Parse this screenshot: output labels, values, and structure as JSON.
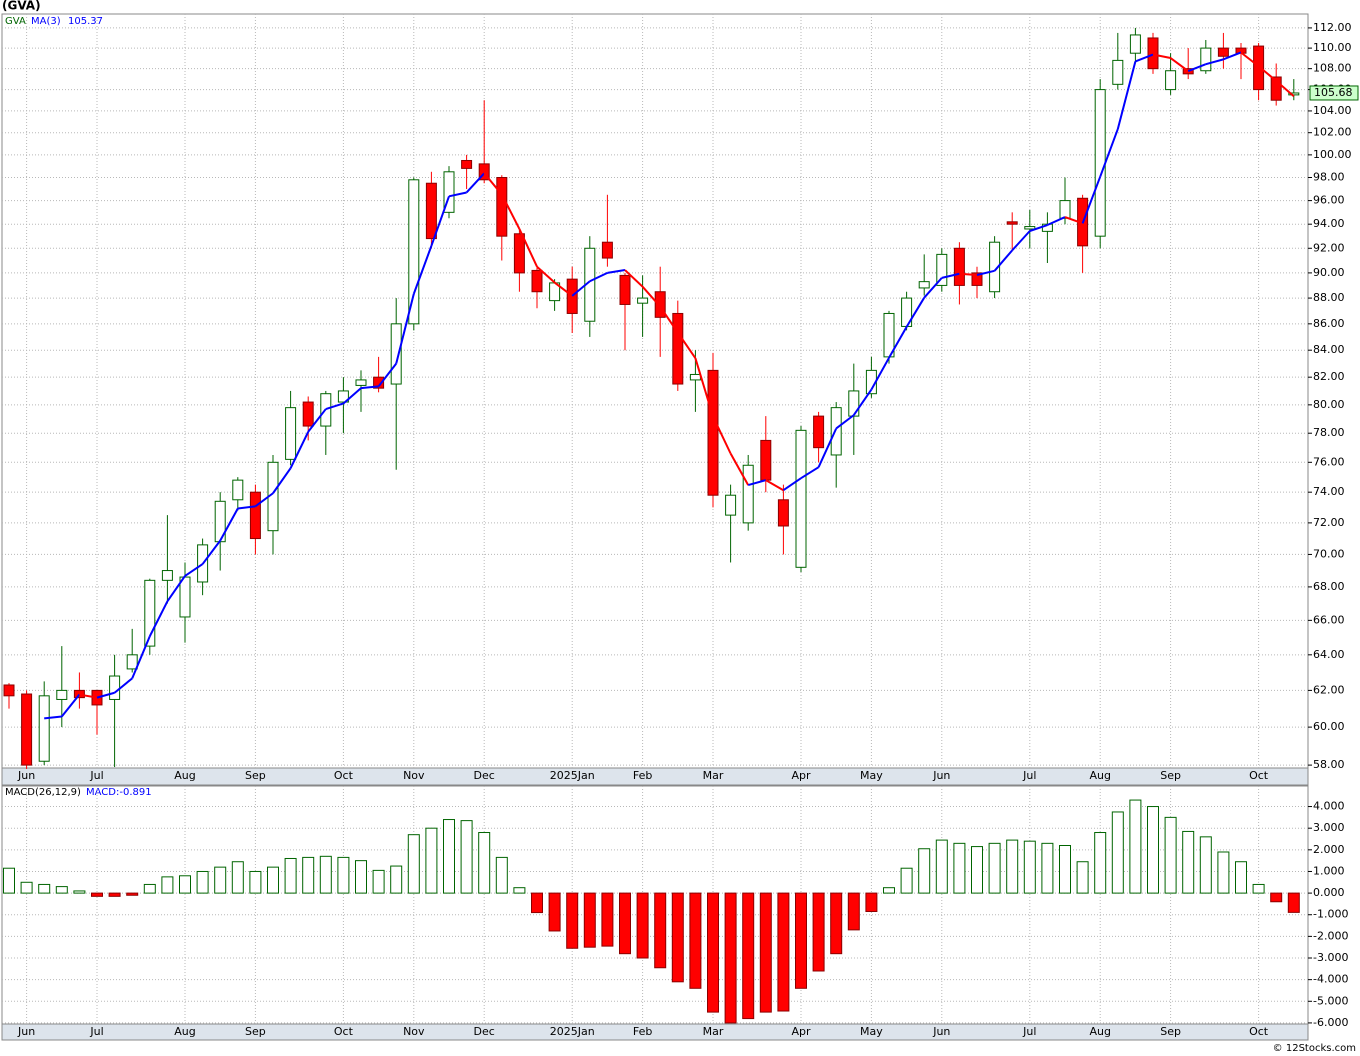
{
  "chart_data": [
    {
      "type": "candlestick",
      "title": "(GVA)",
      "ticker": "GVA",
      "categories": [
        null,
        "Jun",
        null,
        null,
        null,
        "Jul",
        null,
        null,
        null,
        null,
        "Aug",
        null,
        null,
        null,
        "Sep",
        null,
        null,
        null,
        null,
        "Oct",
        null,
        null,
        null,
        "Nov",
        null,
        null,
        null,
        "Dec",
        null,
        null,
        null,
        null,
        "2025Jan",
        null,
        null,
        null,
        "Feb",
        null,
        null,
        null,
        "Mar",
        null,
        null,
        null,
        null,
        "Apr",
        null,
        null,
        null,
        "May",
        null,
        null,
        null,
        "Jun",
        null,
        null,
        null,
        null,
        "Jul",
        null,
        null,
        null,
        "Aug",
        null,
        null,
        null,
        "Sep",
        null,
        null,
        null,
        null,
        "Oct",
        null,
        null
      ],
      "open": [
        62.3,
        61.8,
        58.2,
        61.5,
        62,
        62,
        61.5,
        63.2,
        64.5,
        68.4,
        66.2,
        68.3,
        70.8,
        73.5,
        74,
        71.5,
        76.2,
        80.2,
        78.5,
        80.2,
        81.4,
        82,
        81.5,
        86,
        97.5,
        95,
        99.5,
        99.2,
        98,
        93.2,
        90.2,
        87.8,
        89.5,
        86.2,
        92.5,
        89.8,
        87.6,
        88.5,
        86.8,
        81.8,
        82.5,
        72.5,
        72,
        77.5,
        73.5,
        69.2,
        79.2,
        76.5,
        79.2,
        80.8,
        83.5,
        85.8,
        88.8,
        89,
        92,
        90,
        88.5,
        94.2,
        93.6,
        93.4,
        94.5,
        96.2,
        93,
        106.5,
        109.5,
        111,
        106,
        108,
        107.8,
        110,
        110,
        110.2,
        107.2,
        105.5
      ],
      "high": [
        62.4,
        62,
        62.5,
        64.5,
        63,
        62,
        64,
        65.5,
        68.5,
        72.5,
        69.5,
        71,
        74,
        75,
        74.5,
        76.5,
        81,
        80.6,
        81,
        82,
        82.5,
        83.5,
        88,
        98,
        98.5,
        99,
        100,
        105,
        98.2,
        93.5,
        90.5,
        89.5,
        90.5,
        93,
        96.5,
        90,
        89.8,
        90.5,
        87.8,
        84,
        83.8,
        74.5,
        76.5,
        79.2,
        74.5,
        78.5,
        79.5,
        80.2,
        83,
        83.5,
        87,
        88.5,
        91.5,
        92,
        92.5,
        90.5,
        93,
        95,
        95.2,
        95,
        98,
        96.5,
        107,
        111.5,
        112,
        111.5,
        109.5,
        110,
        110.8,
        111.5,
        110.5,
        110.5,
        108.5,
        107
      ],
      "low": [
        61,
        57.8,
        58,
        60,
        61,
        59.6,
        57.9,
        63,
        64,
        67,
        64.7,
        67.5,
        69,
        72.8,
        70,
        70,
        75.8,
        77.5,
        76.5,
        78,
        79.5,
        80.9,
        75.5,
        85.5,
        92,
        94.5,
        97,
        97.5,
        91,
        88.5,
        87.2,
        87,
        85.3,
        85,
        90.5,
        84,
        85,
        83.5,
        81,
        79.5,
        73,
        69.5,
        71.5,
        74,
        70,
        68.9,
        76,
        74.3,
        76.5,
        80.5,
        83,
        85.5,
        88.2,
        88.5,
        87.5,
        88,
        88,
        91.8,
        92,
        90.8,
        94,
        90,
        92,
        106,
        108.5,
        107.5,
        105.5,
        107,
        107.5,
        108,
        107,
        105,
        104.5,
        105
      ],
      "close": [
        61.7,
        58,
        61.7,
        62,
        61.6,
        61.2,
        62.8,
        64,
        68.4,
        69,
        68.6,
        70.6,
        73.4,
        74.8,
        71,
        76,
        79.8,
        78.5,
        80.8,
        81,
        81.8,
        81.2,
        86,
        97.8,
        92.8,
        98.5,
        98.8,
        97.8,
        93,
        90,
        88.5,
        89.2,
        86.8,
        92,
        91.2,
        87.5,
        88,
        86.5,
        81.5,
        82.2,
        73.8,
        73.8,
        75.8,
        74.8,
        71.8,
        78.2,
        77,
        79.8,
        81,
        82.5,
        86.8,
        88,
        89.3,
        91.5,
        89,
        89,
        92.5,
        94,
        93.8,
        94,
        96,
        92.2,
        106,
        108.8,
        111.3,
        108,
        107.8,
        107.5,
        110,
        109.2,
        109.5,
        106,
        105,
        105.68
      ],
      "up_color": "#006400",
      "down_color": "#ff0000",
      "ma": {
        "name": "MA(3)",
        "up_color": "#0000ff",
        "down_color": "#ff0000",
        "values": [
          null,
          null,
          60.47,
          60.57,
          61.77,
          61.6,
          61.87,
          62.67,
          65.07,
          67.13,
          68.67,
          69.4,
          70.87,
          72.93,
          73.07,
          73.93,
          75.6,
          78.1,
          79.7,
          80.1,
          81.2,
          81.33,
          83,
          88.33,
          92.2,
          96.37,
          96.7,
          98.37,
          96.53,
          93.6,
          90.5,
          89.23,
          88.17,
          89.33,
          90,
          90.23,
          88.9,
          87.33,
          85.33,
          83.4,
          79.17,
          76.6,
          74.47,
          74.8,
          74.13,
          74.93,
          75.67,
          78.33,
          79.27,
          81.1,
          83.43,
          85.77,
          88.03,
          89.6,
          89.93,
          89.83,
          90.17,
          91.83,
          93.43,
          93.93,
          94.6,
          94.07,
          98.07,
          102.33,
          108.7,
          109.37,
          109.03,
          107.77,
          108.43,
          108.9,
          109.57,
          108.23,
          106.83,
          105.37
        ]
      },
      "ylim": [
        57.85,
        113.4
      ],
      "log_scale": true,
      "grid": true,
      "yticks": [
        {
          "value": 58,
          "label": "58.00"
        },
        {
          "value": 60,
          "label": "60.00"
        },
        {
          "value": 62,
          "label": "62.00"
        },
        {
          "value": 64,
          "label": "64.00"
        },
        {
          "value": 66,
          "label": "66.00"
        },
        {
          "value": 68,
          "label": "68.00"
        },
        {
          "value": 70,
          "label": "70.00"
        },
        {
          "value": 72,
          "label": "72.00"
        },
        {
          "value": 74,
          "label": "74.00"
        },
        {
          "value": 76,
          "label": "76.00"
        },
        {
          "value": 78,
          "label": "78.00"
        },
        {
          "value": 80,
          "label": "80.00"
        },
        {
          "value": 82,
          "label": "82.00"
        },
        {
          "value": 84,
          "label": "84.00"
        },
        {
          "value": 86,
          "label": "86.00"
        },
        {
          "value": 88,
          "label": "88.00"
        },
        {
          "value": 90,
          "label": "90.00"
        },
        {
          "value": 92,
          "label": "92.00"
        },
        {
          "value": 94,
          "label": "94.00"
        },
        {
          "value": 96,
          "label": "96.00"
        },
        {
          "value": 98,
          "label": "98.00"
        },
        {
          "value": 100,
          "label": "100.00"
        },
        {
          "value": 102,
          "label": "102.00"
        },
        {
          "value": 104,
          "label": "104.00"
        },
        {
          "value": 106,
          "label": "106.00"
        },
        {
          "value": 108,
          "label": "108.00"
        },
        {
          "value": 110,
          "label": "110.00"
        },
        {
          "value": 112,
          "label": "112.00"
        }
      ]
    },
    {
      "type": "bar",
      "name": "MACD(26,12,9)",
      "current_label": "MACD:",
      "categories": [
        null,
        "Jun",
        null,
        null,
        null,
        "Jul",
        null,
        null,
        null,
        null,
        "Aug",
        null,
        null,
        null,
        "Sep",
        null,
        null,
        null,
        null,
        "Oct",
        null,
        null,
        null,
        "Nov",
        null,
        null,
        null,
        "Dec",
        null,
        null,
        null,
        null,
        "2025Jan",
        null,
        null,
        null,
        "Feb",
        null,
        null,
        null,
        "Mar",
        null,
        null,
        null,
        null,
        "Apr",
        null,
        null,
        null,
        "May",
        null,
        null,
        null,
        "Jun",
        null,
        null,
        null,
        null,
        "Jul",
        null,
        null,
        null,
        "Aug",
        null,
        null,
        null,
        "Sep",
        null,
        null,
        null,
        null,
        "Oct",
        null,
        null
      ],
      "values": [
        1.15,
        0.5,
        0.4,
        0.3,
        0.1,
        -0.15,
        -0.15,
        -0.1,
        0.4,
        0.75,
        0.8,
        1.0,
        1.2,
        1.45,
        1.0,
        1.2,
        1.6,
        1.65,
        1.7,
        1.65,
        1.5,
        1.05,
        1.25,
        2.7,
        3.0,
        3.4,
        3.35,
        2.8,
        1.65,
        0.25,
        -0.9,
        -1.75,
        -2.55,
        -2.5,
        -2.45,
        -2.8,
        -3.0,
        -3.45,
        -4.1,
        -4.4,
        -5.5,
        -6.0,
        -5.8,
        -5.5,
        -5.45,
        -4.4,
        -3.6,
        -2.8,
        -1.7,
        -0.85,
        0.25,
        1.15,
        2.05,
        2.45,
        2.3,
        2.15,
        2.3,
        2.45,
        2.4,
        2.3,
        2.2,
        1.45,
        2.8,
        3.75,
        4.3,
        4.0,
        3.5,
        2.85,
        2.6,
        1.9,
        1.45,
        0.4,
        -0.4,
        -0.891
      ],
      "up_color": "#006400",
      "down_color": "#ff0000",
      "ylim": [
        -6.05,
        4.95
      ],
      "grid": true,
      "yticks": [
        {
          "value": 4,
          "label": "4.000"
        },
        {
          "value": 3,
          "label": "3.000"
        },
        {
          "value": 2,
          "label": "2.000"
        },
        {
          "value": 1,
          "label": "1.000"
        },
        {
          "value": 0,
          "label": "0.000"
        },
        {
          "value": -1,
          "label": "-1.000"
        },
        {
          "value": -2,
          "label": "-2.000"
        },
        {
          "value": -3,
          "label": "-3.000"
        },
        {
          "value": -4,
          "label": "-4.000"
        },
        {
          "value": -5,
          "label": "-5.000"
        },
        {
          "value": -6,
          "label": "-6.000"
        }
      ]
    }
  ],
  "footer": "© 12Stocks.com"
}
